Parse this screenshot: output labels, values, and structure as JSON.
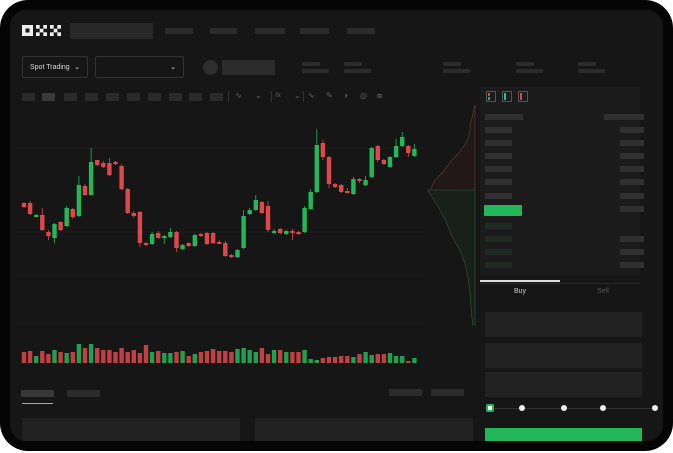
{
  "brand": {
    "logo_text": "OKX"
  },
  "header": {
    "market_selector": "Spot Trading"
  },
  "order_form": {
    "tabs": [
      "Buy",
      "Sell"
    ],
    "active_tab": "Buy",
    "slider_stops": [
      "0%",
      "25%",
      "50%",
      "75%",
      "100%"
    ],
    "slider_value_percent": 0
  },
  "colors": {
    "up": "#22b85a",
    "down": "#e0474c",
    "background": "#161616",
    "panel": "#1c1c1c"
  },
  "toolbar_icons": [
    "indicator-icon",
    "chevron-down-icon",
    "fx-icon",
    "chevron-down-icon",
    "line-icon",
    "pencil-icon",
    "gauge-icon",
    "target-icon",
    "expand-icon"
  ],
  "orderbook_icons": [
    "orderbook-both-icon",
    "orderbook-bids-icon",
    "orderbook-asks-icon"
  ],
  "candles": [
    [
      97,
      93,
      98,
      92
    ],
    [
      97,
      86,
      99,
      85
    ],
    [
      83,
      85,
      86,
      83
    ],
    [
      85,
      70,
      92,
      69
    ],
    [
      68,
      64,
      70,
      60
    ],
    [
      62,
      76,
      77,
      57
    ],
    [
      78,
      70,
      79,
      69
    ],
    [
      74,
      92,
      94,
      73
    ],
    [
      91,
      83,
      92,
      81
    ],
    [
      84,
      115,
      124,
      83
    ],
    [
      114,
      105,
      116,
      104
    ],
    [
      105,
      138,
      152,
      105
    ],
    [
      140,
      135,
      140,
      134
    ],
    [
      137,
      133,
      139,
      132
    ],
    [
      137,
      125,
      142,
      124
    ],
    [
      138,
      136,
      139,
      135
    ],
    [
      134,
      111,
      136,
      110
    ],
    [
      111,
      87,
      112,
      86
    ],
    [
      87,
      84,
      89,
      82
    ],
    [
      88,
      57,
      89,
      53
    ],
    [
      57,
      55,
      58,
      54
    ],
    [
      56,
      66,
      68,
      55
    ],
    [
      67,
      62,
      69,
      61
    ],
    [
      62,
      64,
      65,
      56
    ],
    [
      63,
      68,
      72,
      62
    ],
    [
      68,
      52,
      69,
      48
    ],
    [
      51,
      55,
      56,
      50
    ],
    [
      57,
      54,
      58,
      53
    ],
    [
      54,
      65,
      66,
      53
    ],
    [
      66,
      64,
      67,
      63
    ],
    [
      67,
      56,
      68,
      55
    ],
    [
      67,
      57,
      68,
      56
    ],
    [
      58,
      57,
      60,
      56
    ],
    [
      57,
      44,
      59,
      43
    ],
    [
      45,
      43,
      46,
      42
    ],
    [
      43,
      50,
      51,
      42
    ],
    [
      52,
      84,
      90,
      51
    ],
    [
      86,
      90,
      92,
      85
    ],
    [
      90,
      100,
      105,
      89
    ],
    [
      98,
      87,
      99,
      86
    ],
    [
      94,
      70,
      99,
      68
    ],
    [
      68,
      69,
      71,
      66
    ],
    [
      71,
      67,
      72,
      66
    ],
    [
      66,
      69,
      70,
      65
    ],
    [
      69,
      68,
      71,
      60
    ],
    [
      68,
      66,
      69,
      65
    ],
    [
      68,
      92,
      94,
      67
    ],
    [
      91,
      108,
      111,
      90
    ],
    [
      108,
      155,
      171,
      107
    ],
    [
      157,
      143,
      160,
      140
    ],
    [
      143,
      116,
      144,
      112
    ],
    [
      116,
      113,
      117,
      112
    ],
    [
      115,
      108,
      116,
      107
    ],
    [
      109,
      108,
      112,
      107
    ],
    [
      106,
      121,
      123,
      105
    ],
    [
      121,
      119,
      122,
      117
    ],
    [
      115,
      120,
      124,
      114
    ],
    [
      123,
      152,
      153,
      122
    ],
    [
      154,
      140,
      155,
      138
    ],
    [
      140,
      136,
      141,
      135
    ],
    [
      133,
      143,
      144,
      132
    ],
    [
      143,
      154,
      161,
      142
    ],
    [
      154,
      163,
      168,
      153
    ],
    [
      154,
      147,
      155,
      143
    ],
    [
      144,
      151,
      156,
      143
    ]
  ],
  "volumes": [
    11,
    12,
    7,
    12,
    9,
    13,
    11,
    10,
    11,
    19,
    15,
    19,
    15,
    13,
    13,
    11,
    15,
    11,
    13,
    10,
    18,
    11,
    12,
    10,
    10,
    11,
    12,
    7,
    9,
    11,
    12,
    14,
    12,
    12,
    11,
    14,
    15,
    13,
    11,
    15,
    9,
    13,
    13,
    11,
    11,
    11,
    13,
    4,
    3,
    5,
    6,
    6,
    7,
    7,
    6,
    9,
    11,
    8,
    9,
    9,
    10,
    7,
    7,
    2,
    5
  ],
  "depth": {
    "asks": [
      0,
      0.05,
      0.1,
      0.12,
      0.2,
      0.35,
      0.55,
      0.7,
      0.9,
      1.0
    ],
    "bids": [
      1.0,
      0.8,
      0.62,
      0.5,
      0.32,
      0.2,
      0.14,
      0.1,
      0.08,
      0.05
    ]
  }
}
